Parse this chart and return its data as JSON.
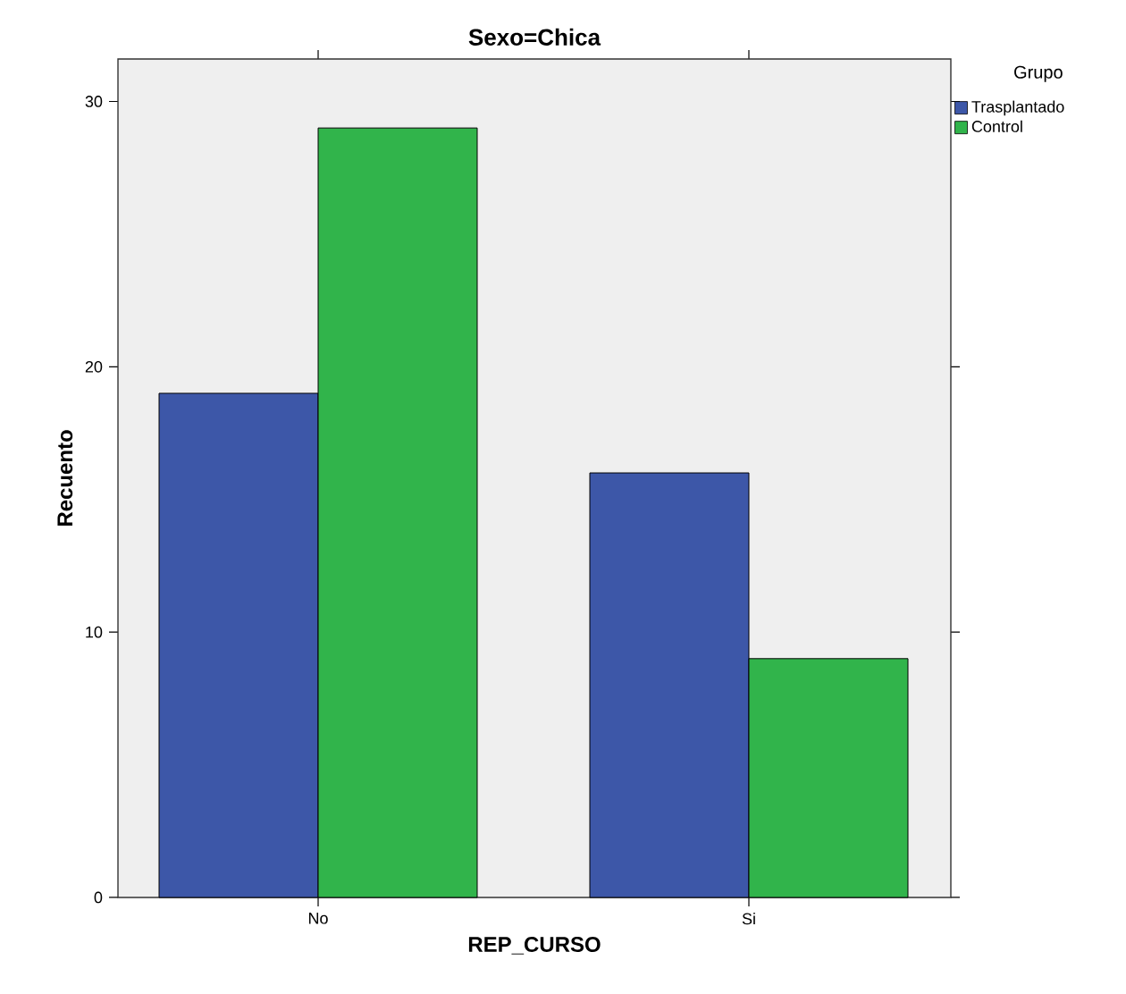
{
  "chart_data": {
    "type": "bar",
    "title": "Sexo=Chica",
    "xlabel": "REP_CURSO",
    "ylabel": "Recuento",
    "legend_title": "Grupo",
    "categories": [
      "No",
      "Si"
    ],
    "series": [
      {
        "name": "Trasplantado",
        "color": "#3d57a8",
        "values": [
          19,
          16
        ]
      },
      {
        "name": "Control",
        "color": "#31b44b",
        "values": [
          29,
          9
        ]
      }
    ],
    "ylim": [
      0,
      31.6
    ],
    "yticks": [
      0,
      10,
      20,
      30
    ],
    "grid": false,
    "legend": "top right"
  }
}
